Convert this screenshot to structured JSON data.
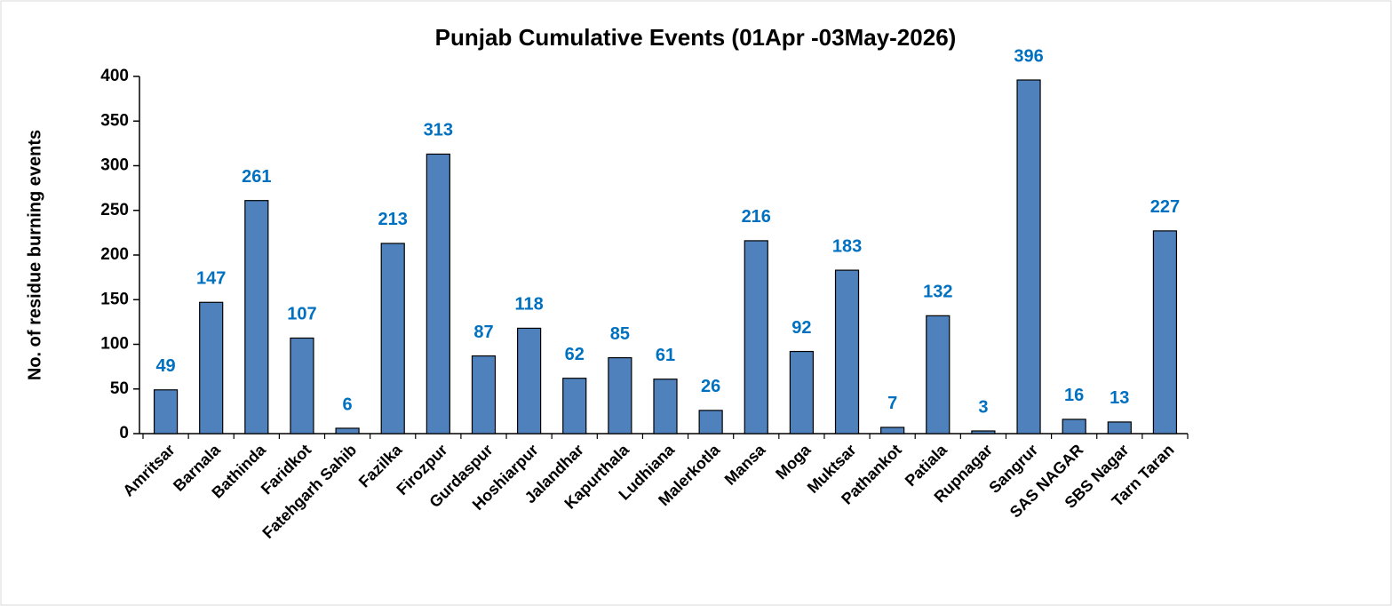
{
  "chart_data": {
    "type": "bar",
    "title": "Punjab Cumulative Events (01Apr -03May-2026)",
    "ylabel": "No. of residue burning events",
    "categories": [
      "Amritsar",
      "Barnala",
      "Bathinda",
      "Faridkot",
      "Fatehgarh Sahib",
      "Fazilka",
      "Firozpur",
      "Gurdaspur",
      "Hoshiarpur",
      "Jalandhar",
      "Kapurthala",
      "Ludhiana",
      "Malerkotla",
      "Mansa",
      "Moga",
      "Muktsar",
      "Pathankot",
      "Patiala",
      "Rupnagar",
      "Sangrur",
      "SAS NAGAR",
      "SBS Nagar",
      "Tarn Taran"
    ],
    "values": [
      49,
      147,
      261,
      107,
      6,
      213,
      313,
      87,
      118,
      62,
      85,
      61,
      26,
      216,
      92,
      183,
      7,
      132,
      3,
      396,
      16,
      13,
      227
    ],
    "color": "#4f81bd",
    "label_color": "#0070c0",
    "ylim": [
      0,
      400
    ],
    "yticks": [
      0,
      50,
      100,
      150,
      200,
      250,
      300,
      350,
      400
    ],
    "grid": false
  }
}
